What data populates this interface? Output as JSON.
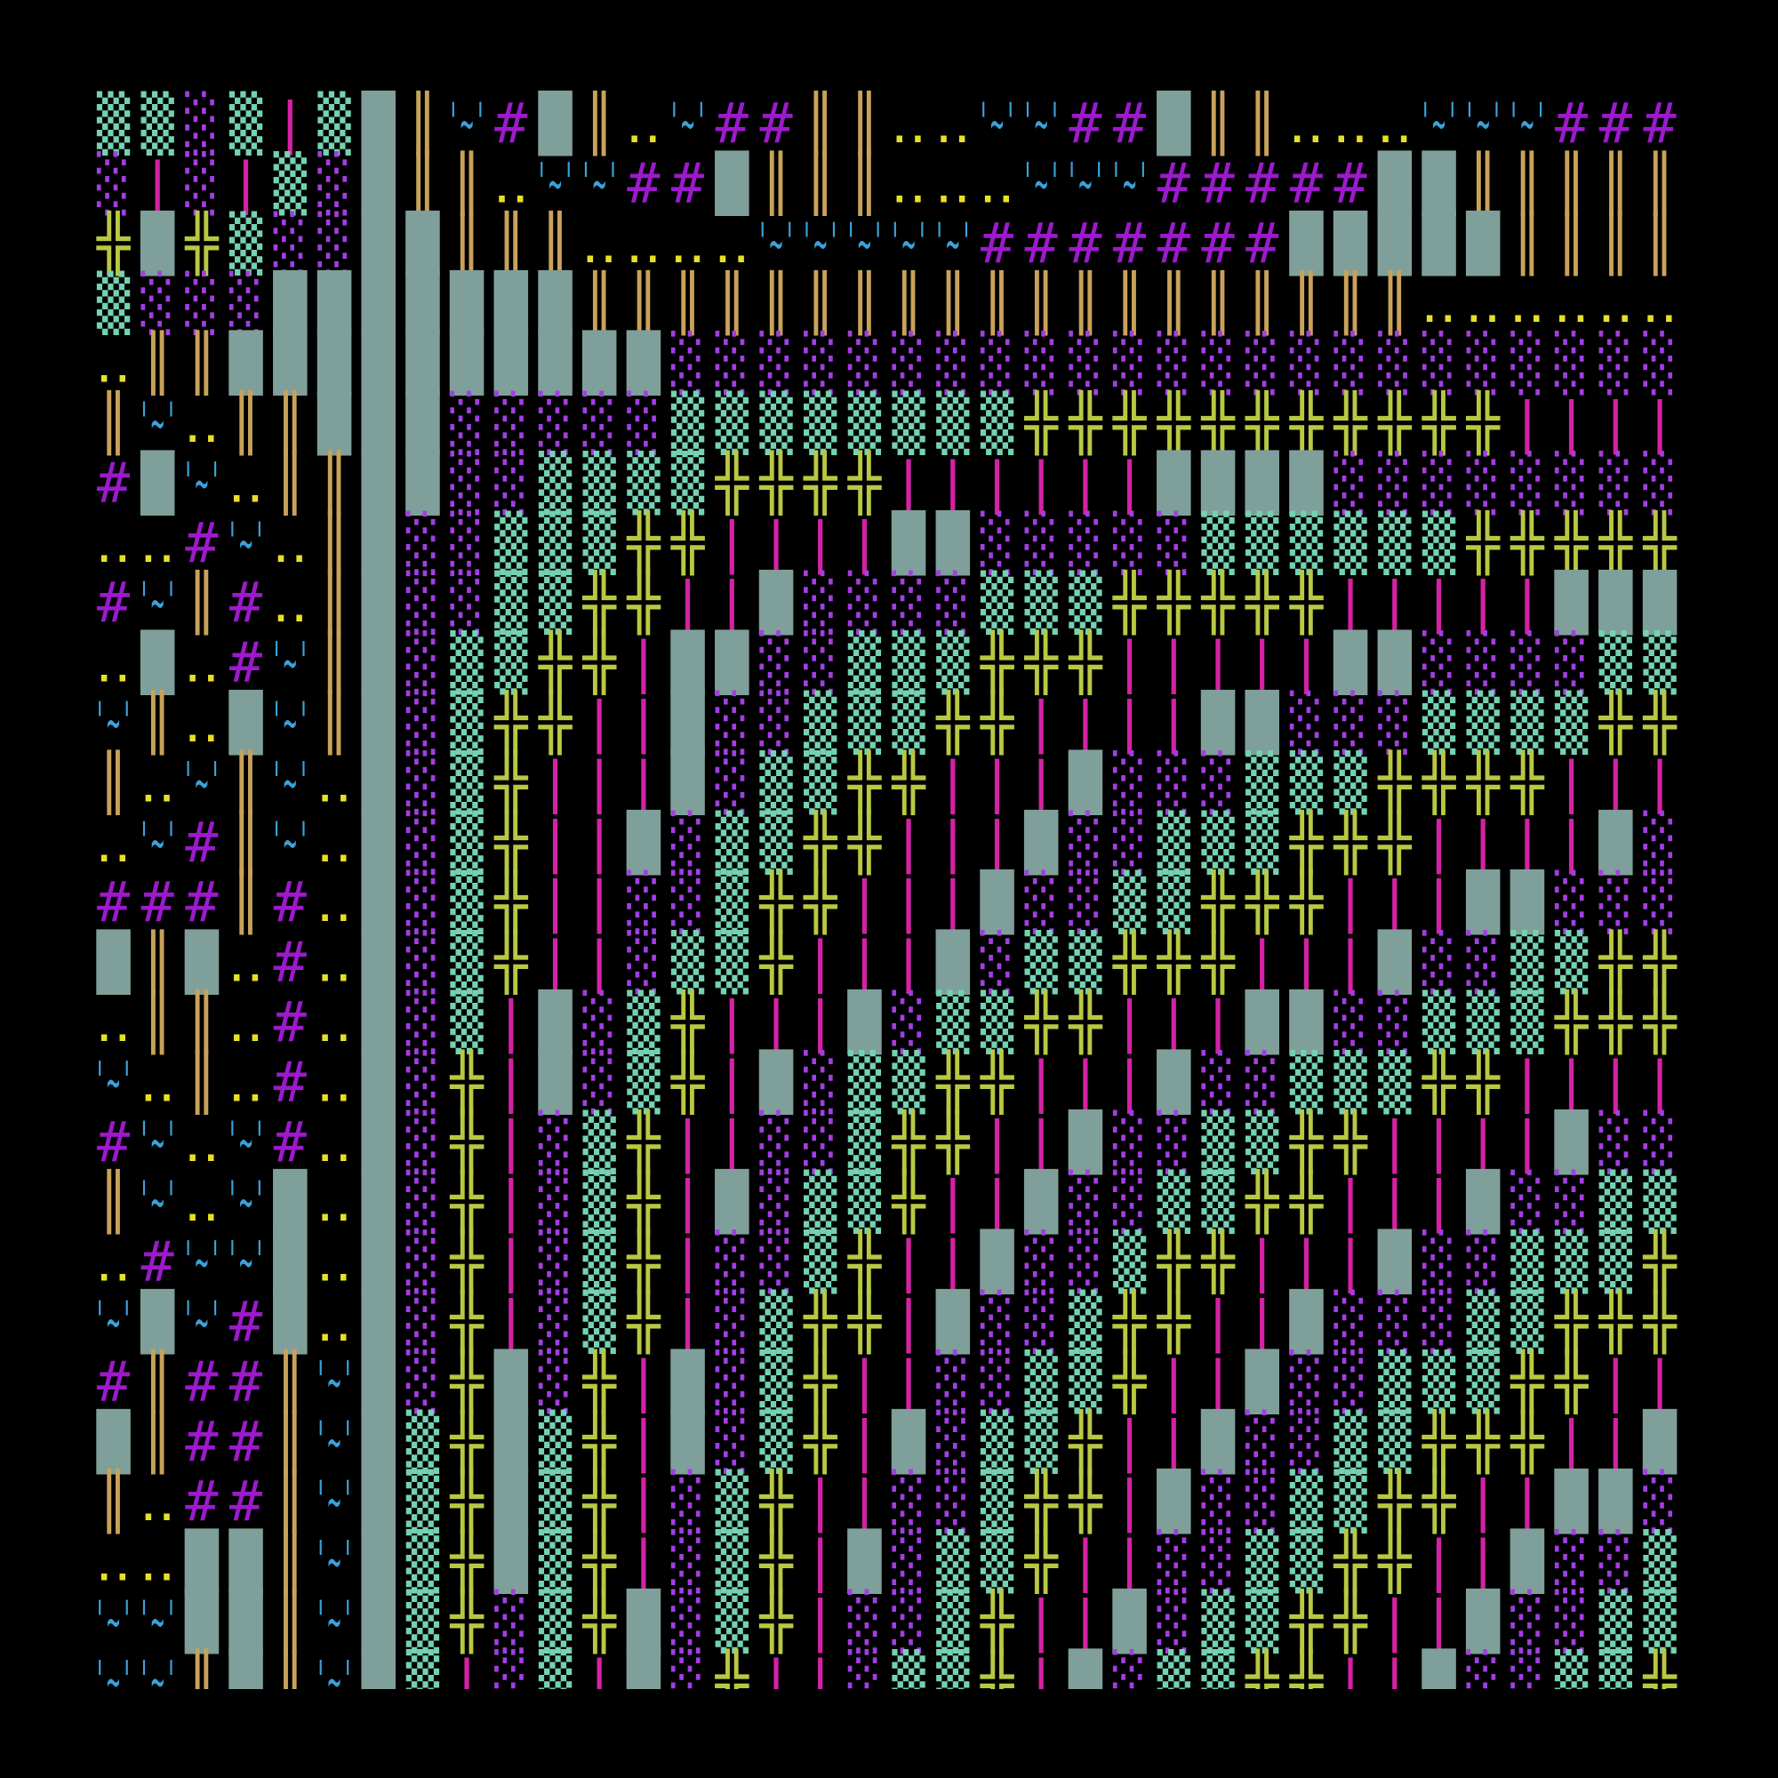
{
  "grid": {
    "palette": {
      "▒": "#74d2b2",
      "░": "#a23ee2",
      "█": "#7f9f9a",
      "║": "#c9a25a",
      "|": "#d422a4",
      "╬": "#b9c842",
      "#": "#9c1acc",
      "'~'": "#3aa2da",
      "‥": "#e8e024"
    },
    "rows": [
      [
        "▒",
        "▒",
        "░",
        "▒",
        "|",
        "▒",
        "█",
        "║",
        "'~'",
        "#",
        "█",
        "║",
        "‥",
        "'~'",
        "#",
        "#",
        "║",
        "║",
        "‥",
        "‥",
        "'~'",
        "'~'",
        "#",
        "#",
        "█",
        "║",
        "║",
        "‥",
        "‥",
        "‥",
        "'~'",
        "'~'",
        "'~'",
        "#",
        "#",
        "#"
      ],
      [
        "░",
        "|",
        "░",
        "|",
        "▒",
        "░",
        "█",
        "║",
        "║",
        "‥",
        "'~'",
        "'~'",
        "#",
        "#",
        "█",
        "║",
        "║",
        "║",
        "‥",
        "‥",
        "‥",
        "'~'",
        "'~'",
        "'~'",
        "#",
        "#",
        "#",
        "#",
        "#",
        "█",
        "█",
        "║",
        "║",
        "║",
        "║",
        "║"
      ],
      [
        "╬",
        "█",
        "╬",
        "▒",
        "░",
        "░",
        "█",
        "█",
        "║",
        "║",
        "║",
        "‥",
        "‥",
        "‥",
        "‥",
        "'~'",
        "'~'",
        "'~'",
        "'~'",
        "'~'",
        "#",
        "#",
        "#",
        "#",
        "#",
        "#",
        "#",
        "█",
        "█",
        "█",
        "█",
        "█",
        "║",
        "║",
        "║",
        "║"
      ],
      [
        "▒",
        "░",
        "░",
        "░",
        "█",
        "█",
        "█",
        "█",
        "█",
        "█",
        "█",
        "║",
        "║",
        "║",
        "║",
        "║",
        "║",
        "║",
        "║",
        "║",
        "║",
        "║",
        "║",
        "║",
        "║",
        "║",
        "║",
        "║",
        "║",
        "║",
        "‥",
        "‥",
        "‥",
        "‥",
        "‥",
        "‥"
      ],
      [
        "‥",
        "║",
        "║",
        "█",
        "█",
        "█",
        "█",
        "█",
        "█",
        "█",
        "█",
        "█",
        "█",
        "░",
        "░",
        "░",
        "░",
        "░",
        "░",
        "░",
        "░",
        "░",
        "░",
        "░",
        "░",
        "░",
        "░",
        "░",
        "░",
        "░",
        "░",
        "░",
        "░",
        "░",
        "░",
        "░"
      ],
      [
        "║",
        "'~'",
        "‥",
        "║",
        "║",
        "█",
        "█",
        "█",
        "░",
        "░",
        "░",
        "░",
        "░",
        "▒",
        "▒",
        "▒",
        "▒",
        "▒",
        "▒",
        "▒",
        "▒",
        "╬",
        "╬",
        "╬",
        "╬",
        "╬",
        "╬",
        "╬",
        "╬",
        "╬",
        "╬",
        "╬",
        "|",
        "|",
        "|",
        "|"
      ],
      [
        "#",
        "█",
        "'~'",
        "‥",
        "║",
        "║",
        "█",
        "█",
        "░",
        "░",
        "▒",
        "▒",
        "▒",
        "▒",
        "╬",
        "╬",
        "╬",
        "╬",
        "|",
        "|",
        "|",
        "|",
        "|",
        "|",
        "█",
        "█",
        "█",
        "█",
        "░",
        "░",
        "░",
        "░",
        "░",
        "░",
        "░",
        "░"
      ],
      [
        "‥",
        "‥",
        "#",
        "'~'",
        "‥",
        "║",
        "█",
        "░",
        "░",
        "▒",
        "▒",
        "▒",
        "╬",
        "╬",
        "|",
        "|",
        "|",
        "|",
        "█",
        "█",
        "░",
        "░",
        "░",
        "░",
        "░",
        "▒",
        "▒",
        "▒",
        "▒",
        "▒",
        "▒",
        "╬",
        "╬",
        "╬",
        "╬",
        "╬"
      ],
      [
        "#",
        "'~'",
        "║",
        "#",
        "‥",
        "║",
        "█",
        "░",
        "░",
        "▒",
        "▒",
        "╬",
        "╬",
        "|",
        "|",
        "█",
        "░",
        "░",
        "░",
        "░",
        "▒",
        "▒",
        "▒",
        "╬",
        "╬",
        "╬",
        "╬",
        "╬",
        "|",
        "|",
        "|",
        "|",
        "|",
        "█",
        "█",
        "█"
      ],
      [
        "‥",
        "█",
        "‥",
        "#",
        "'~'",
        "║",
        "█",
        "░",
        "▒",
        "▒",
        "╬",
        "╬",
        "|",
        "█",
        "█",
        "░",
        "░",
        "▒",
        "▒",
        "▒",
        "╬",
        "╬",
        "╬",
        "|",
        "|",
        "|",
        "|",
        "|",
        "█",
        "█",
        "░",
        "░",
        "░",
        "░",
        "▒",
        "▒"
      ],
      [
        "'~'",
        "║",
        "‥",
        "█",
        "'~'",
        "║",
        "█",
        "░",
        "▒",
        "╬",
        "╬",
        "|",
        "|",
        "█",
        "░",
        "░",
        "▒",
        "▒",
        "▒",
        "╬",
        "╬",
        "|",
        "|",
        "|",
        "|",
        "█",
        "█",
        "░",
        "░",
        "░",
        "▒",
        "▒",
        "▒",
        "▒",
        "╬",
        "╬"
      ],
      [
        "║",
        "‥",
        "'~'",
        "║",
        "'~'",
        "‥",
        "█",
        "░",
        "▒",
        "╬",
        "|",
        "|",
        "|",
        "█",
        "░",
        "▒",
        "▒",
        "╬",
        "╬",
        "|",
        "|",
        "|",
        "█",
        "░",
        "░",
        "░",
        "▒",
        "▒",
        "▒",
        "╬",
        "╬",
        "╬",
        "╬",
        "|",
        "|",
        "|"
      ],
      [
        "‥",
        "'~'",
        "#",
        "║",
        "'~'",
        "‥",
        "█",
        "░",
        "▒",
        "╬",
        "|",
        "|",
        "█",
        "░",
        "▒",
        "▒",
        "╬",
        "╬",
        "|",
        "|",
        "|",
        "█",
        "░",
        "░",
        "▒",
        "▒",
        "▒",
        "╬",
        "╬",
        "╬",
        "|",
        "|",
        "|",
        "|",
        "█",
        "░"
      ],
      [
        "#",
        "#",
        "#",
        "║",
        "#",
        "‥",
        "█",
        "░",
        "▒",
        "╬",
        "|",
        "|",
        "░",
        "░",
        "▒",
        "╬",
        "╬",
        "|",
        "|",
        "|",
        "█",
        "░",
        "░",
        "▒",
        "▒",
        "╬",
        "╬",
        "╬",
        "|",
        "|",
        "|",
        "█",
        "█",
        "░",
        "░",
        "░"
      ],
      [
        "█",
        "║",
        "█",
        "‥",
        "#",
        "‥",
        "█",
        "░",
        "▒",
        "╬",
        "|",
        "|",
        "░",
        "▒",
        "▒",
        "╬",
        "|",
        "|",
        "|",
        "█",
        "░",
        "▒",
        "▒",
        "╬",
        "╬",
        "╬",
        "|",
        "|",
        "|",
        "█",
        "░",
        "░",
        "▒",
        "▒",
        "╬",
        "╬"
      ],
      [
        "‥",
        "║",
        "║",
        "‥",
        "#",
        "‥",
        "█",
        "░",
        "▒",
        "|",
        "█",
        "░",
        "▒",
        "╬",
        "|",
        "|",
        "|",
        "█",
        "░",
        "▒",
        "▒",
        "╬",
        "╬",
        "|",
        "|",
        "|",
        "█",
        "█",
        "░",
        "░",
        "▒",
        "▒",
        "▒",
        "╬",
        "╬",
        "╬"
      ],
      [
        "'~'",
        "‥",
        "║",
        "‥",
        "#",
        "‥",
        "█",
        "░",
        "╬",
        "|",
        "█",
        "░",
        "▒",
        "╬",
        "|",
        "█",
        "░",
        "▒",
        "▒",
        "╬",
        "╬",
        "|",
        "|",
        "|",
        "█",
        "░",
        "░",
        "▒",
        "▒",
        "▒",
        "╬",
        "╬",
        "|",
        "|",
        "|",
        "|"
      ],
      [
        "#",
        "'~'",
        "‥",
        "'~'",
        "#",
        "‥",
        "█",
        "░",
        "╬",
        "|",
        "░",
        "▒",
        "╬",
        "|",
        "|",
        "░",
        "░",
        "▒",
        "╬",
        "╬",
        "|",
        "|",
        "█",
        "░",
        "░",
        "▒",
        "▒",
        "╬",
        "╬",
        "|",
        "|",
        "|",
        "|",
        "█",
        "░",
        "░"
      ],
      [
        "║",
        "'~'",
        "‥",
        "'~'",
        "█",
        "‥",
        "█",
        "░",
        "╬",
        "|",
        "░",
        "▒",
        "╬",
        "|",
        "█",
        "░",
        "▒",
        "▒",
        "╬",
        "|",
        "|",
        "█",
        "░",
        "░",
        "▒",
        "▒",
        "╬",
        "╬",
        "|",
        "|",
        "|",
        "█",
        "░",
        "░",
        "▒",
        "▒"
      ],
      [
        "‥",
        "#",
        "'~'",
        "'~'",
        "█",
        "‥",
        "█",
        "░",
        "╬",
        "|",
        "░",
        "▒",
        "╬",
        "|",
        "░",
        "░",
        "▒",
        "╬",
        "|",
        "|",
        "█",
        "░",
        "░",
        "▒",
        "╬",
        "╬",
        "|",
        "|",
        "|",
        "█",
        "░",
        "░",
        "▒",
        "▒",
        "▒",
        "╬"
      ],
      [
        "'~'",
        "█",
        "'~'",
        "#",
        "█",
        "‥",
        "█",
        "░",
        "╬",
        "|",
        "░",
        "▒",
        "╬",
        "|",
        "░",
        "▒",
        "╬",
        "╬",
        "|",
        "█",
        "░",
        "░",
        "▒",
        "╬",
        "╬",
        "|",
        "|",
        "█",
        "░",
        "░",
        "░",
        "▒",
        "▒",
        "╬",
        "╬",
        "╬"
      ],
      [
        "#",
        "║",
        "#",
        "#",
        "║",
        "'~'",
        "█",
        "░",
        "╬",
        "█",
        "░",
        "╬",
        "|",
        "█",
        "░",
        "▒",
        "╬",
        "|",
        "|",
        "░",
        "░",
        "▒",
        "▒",
        "╬",
        "|",
        "|",
        "█",
        "░",
        "░",
        "▒",
        "▒",
        "▒",
        "╬",
        "╬",
        "|",
        "|"
      ],
      [
        "█",
        "║",
        "#",
        "#",
        "║",
        "'~'",
        "█",
        "▒",
        "╬",
        "█",
        "▒",
        "╬",
        "|",
        "█",
        "░",
        "▒",
        "╬",
        "|",
        "█",
        "░",
        "▒",
        "▒",
        "╬",
        "|",
        "|",
        "█",
        "░",
        "░",
        "▒",
        "▒",
        "╬",
        "╬",
        "╬",
        "|",
        "|",
        "█"
      ],
      [
        "║",
        "‥",
        "#",
        "#",
        "║",
        "'~'",
        "█",
        "▒",
        "╬",
        "█",
        "▒",
        "╬",
        "|",
        "░",
        "▒",
        "╬",
        "|",
        "|",
        "░",
        "░",
        "▒",
        "╬",
        "╬",
        "|",
        "█",
        "░",
        "░",
        "▒",
        "▒",
        "╬",
        "╬",
        "|",
        "|",
        "█",
        "█",
        "░"
      ],
      [
        "‥",
        "‥",
        "█",
        "█",
        "║",
        "'~'",
        "█",
        "▒",
        "╬",
        "█",
        "▒",
        "╬",
        "|",
        "░",
        "▒",
        "╬",
        "|",
        "█",
        "░",
        "▒",
        "▒",
        "╬",
        "|",
        "|",
        "░",
        "░",
        "▒",
        "▒",
        "╬",
        "╬",
        "|",
        "|",
        "█",
        "░",
        "░",
        "▒"
      ],
      [
        "'~'",
        "'~'",
        "█",
        "█",
        "║",
        "'~'",
        "█",
        "▒",
        "╬",
        "░",
        "▒",
        "╬",
        "█",
        "░",
        "▒",
        "╬",
        "|",
        "░",
        "░",
        "▒",
        "╬",
        "|",
        "|",
        "█",
        "░",
        "▒",
        "▒",
        "╬",
        "╬",
        "|",
        "|",
        "█",
        "░",
        "░",
        "▒",
        "▒"
      ],
      [
        "'~'",
        "'~'",
        "║",
        "█",
        "║",
        "'~'",
        "█",
        "▒",
        "|",
        "░",
        "▒",
        "|",
        "█",
        "░",
        "╬",
        "|",
        "|",
        "░",
        "▒",
        "▒",
        "╬",
        "|",
        "█",
        "░",
        "▒",
        "▒",
        "╬",
        "╬",
        "|",
        "|",
        "█",
        "░",
        "░",
        "▒",
        "▒",
        "╬"
      ]
    ]
  }
}
